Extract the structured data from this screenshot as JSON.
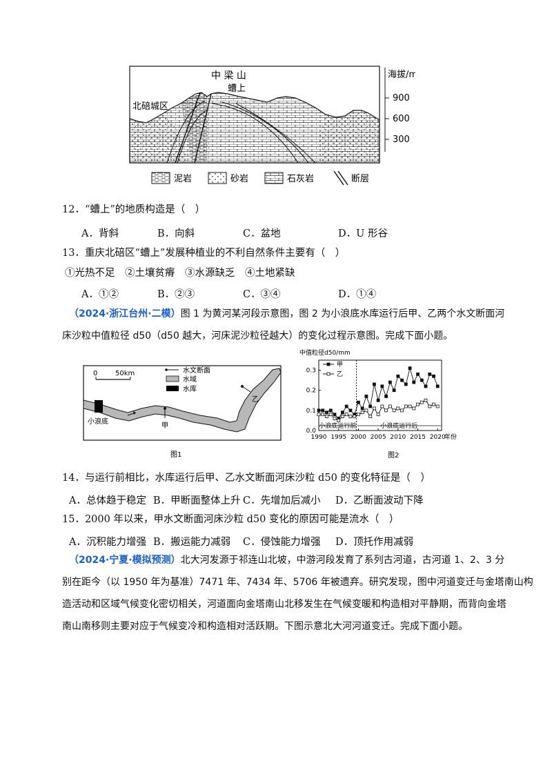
{
  "fig_geo": {
    "mountain_name": "中 梁 山",
    "place_label": "螬上",
    "district_label": "北碚城区",
    "axis_title": "海拔/m",
    "axis_ticks": [
      "900",
      "600",
      "300"
    ],
    "legend": [
      "泥岩",
      "砂岩",
      "石灰岩",
      "断层"
    ]
  },
  "q12": {
    "stem": "12．“螬上”的地质构造是（　）",
    "options": [
      "A．背斜",
      "B．向斜",
      "C．盆地",
      "D．U 形谷"
    ]
  },
  "q13": {
    "stem": "13．重庆北碚区“螬上”发展种植业的不利自然条件主要有（　）",
    "items": "①光热不足　②土壤贫瘠　③水源缺乏　④土地紧缺",
    "options": [
      "A．①②",
      "B．②③",
      "C．③④",
      "D．①④"
    ]
  },
  "intro1": {
    "source": "（2024·浙江台州·二模）",
    "line1": "图 1 为黄河某河段示意图，图 2 为小浪底水库运行后甲、乙两个水文断面河",
    "line2": "床沙粒中值粒径 d50（d50 越大，河床泥沙粒径越大）的变化过程示意图。完成下面小题。"
  },
  "fig1": {
    "scale_zero": "0",
    "scale_label": "50km",
    "legend_station": "水文断面",
    "legend_water": "水域",
    "legend_reservoir": "水库",
    "label_xiaolangdi": "小浪底",
    "label_jia": "甲",
    "label_yi": "乙",
    "caption": "图1"
  },
  "fig2": {
    "caption": "图2"
  },
  "chart_data": {
    "type": "line",
    "title": "",
    "ylabel": "中值粒径d50/mm",
    "xlabel": "年份",
    "ylim": [
      0,
      0.35
    ],
    "xlim": [
      1990,
      2021
    ],
    "yticks": [
      "0.0",
      "0.1",
      "0.2",
      "0.3"
    ],
    "xticks": [
      "1990",
      "1995",
      "2000",
      "2005",
      "2010",
      "2015",
      "2020"
    ],
    "annotations": [
      "小浪底运行前",
      "小浪底运行后"
    ],
    "divider_year": 1999.5,
    "series": [
      {
        "name": "甲",
        "marker": "filled-square",
        "x": [
          1990,
          1991,
          1992,
          1993,
          1994,
          1995,
          1996,
          1997,
          1998,
          1999,
          2000,
          2001,
          2002,
          2003,
          2004,
          2005,
          2006,
          2007,
          2008,
          2009,
          2010,
          2011,
          2012,
          2013,
          2014,
          2015,
          2016,
          2017,
          2018,
          2019,
          2020
        ],
        "y": [
          0.1,
          0.1,
          0.09,
          0.1,
          0.08,
          0.06,
          0.09,
          0.12,
          0.1,
          0.08,
          0.14,
          0.11,
          0.17,
          0.12,
          0.23,
          0.15,
          0.22,
          0.17,
          0.24,
          0.2,
          0.27,
          0.25,
          0.23,
          0.31,
          0.24,
          0.28,
          0.25,
          0.22,
          0.28,
          0.27,
          0.22
        ]
      },
      {
        "name": "乙",
        "marker": "open-square",
        "x": [
          1990,
          1991,
          1992,
          1993,
          1994,
          1995,
          1996,
          1997,
          1998,
          1999,
          2000,
          2001,
          2002,
          2003,
          2004,
          2005,
          2006,
          2007,
          2008,
          2009,
          2010,
          2011,
          2012,
          2013,
          2014,
          2015,
          2016,
          2017,
          2018,
          2019,
          2020
        ],
        "y": [
          0.08,
          0.08,
          0.07,
          0.08,
          0.06,
          0.05,
          0.07,
          0.08,
          0.07,
          0.07,
          0.08,
          0.09,
          0.1,
          0.07,
          0.11,
          0.08,
          0.12,
          0.1,
          0.12,
          0.1,
          0.11,
          0.1,
          0.12,
          0.12,
          0.11,
          0.13,
          0.14,
          0.15,
          0.12,
          0.13,
          0.12
        ]
      }
    ]
  },
  "q14": {
    "stem": "14．与运行前相比，水库运行后甲、乙水文断面河床沙粒 d50 的变化特征是（　）",
    "options": [
      "A．总体趋于稳定",
      "B．甲断面整体上升",
      "C．先增加后减小",
      "D．乙断面波动下降"
    ]
  },
  "q15": {
    "stem": "15．2000 年以来，甲水文断面河床沙粒 d50 变化的原因可能是流水（　）",
    "options": [
      "A．沉积能力增强",
      "B．搬运能力减弱",
      "C．侵蚀能力增强",
      "D．顶托作用减弱"
    ]
  },
  "intro2": {
    "source": "（2024·宁夏·模拟预测）",
    "line1": "北大河发源于祁连山北坡，中游河段发育了系列古河道，古河道 1、2、3 分",
    "line2": "别在距今（以 1950 年为基准）7471 年、7434 年、5706 年被遗弃。研究发现，图中河道变迁与金塔南山构",
    "line3": "造活动和区域气候变化密切相关，河道面向金塔南山北移发生在气候变暖和构造相对平静期，而背向金塔",
    "line4": "南山南移则主要对应于气候变冷和构造相对活跃期。下图示意北大河河道变迁。完成下面小题。"
  }
}
